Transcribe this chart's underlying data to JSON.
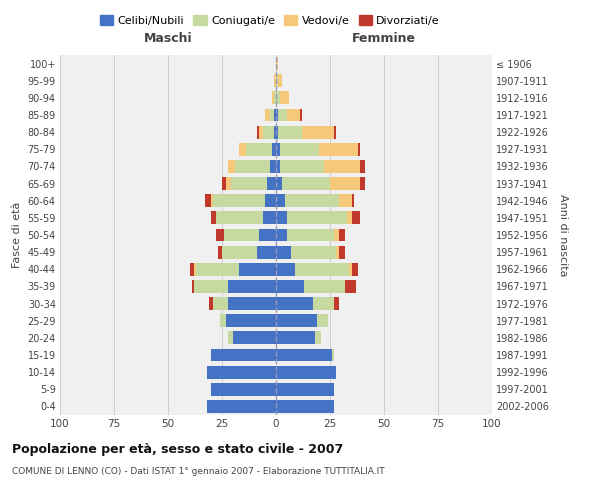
{
  "age_groups": [
    "0-4",
    "5-9",
    "10-14",
    "15-19",
    "20-24",
    "25-29",
    "30-34",
    "35-39",
    "40-44",
    "45-49",
    "50-54",
    "55-59",
    "60-64",
    "65-69",
    "70-74",
    "75-79",
    "80-84",
    "85-89",
    "90-94",
    "95-99",
    "100+"
  ],
  "birth_years": [
    "2002-2006",
    "1997-2001",
    "1992-1996",
    "1987-1991",
    "1982-1986",
    "1977-1981",
    "1972-1976",
    "1967-1971",
    "1962-1966",
    "1957-1961",
    "1952-1956",
    "1947-1951",
    "1942-1946",
    "1937-1941",
    "1932-1936",
    "1927-1931",
    "1922-1926",
    "1917-1921",
    "1912-1916",
    "1907-1911",
    "≤ 1906"
  ],
  "colors": {
    "celibi": "#4472c4",
    "coniugati": "#c5d9a0",
    "vedovi": "#f5c87a",
    "divorziati": "#c0392b"
  },
  "maschi": {
    "celibi": [
      32,
      30,
      32,
      30,
      20,
      23,
      22,
      22,
      17,
      9,
      8,
      6,
      5,
      4,
      3,
      2,
      1,
      1,
      0,
      0,
      0
    ],
    "coniugati": [
      0,
      0,
      0,
      0,
      2,
      3,
      7,
      16,
      20,
      16,
      16,
      22,
      24,
      17,
      16,
      12,
      5,
      2,
      1,
      0,
      0
    ],
    "vedovi": [
      0,
      0,
      0,
      0,
      0,
      0,
      0,
      0,
      1,
      0,
      0,
      0,
      1,
      2,
      3,
      3,
      2,
      2,
      1,
      1,
      0
    ],
    "divorziati": [
      0,
      0,
      0,
      0,
      0,
      0,
      2,
      1,
      2,
      2,
      4,
      2,
      3,
      2,
      0,
      0,
      1,
      0,
      0,
      0,
      0
    ]
  },
  "femmine": {
    "celibi": [
      27,
      27,
      28,
      26,
      18,
      19,
      17,
      13,
      9,
      7,
      5,
      5,
      4,
      3,
      2,
      2,
      1,
      1,
      0,
      0,
      0
    ],
    "coniugati": [
      0,
      0,
      0,
      1,
      3,
      5,
      10,
      19,
      25,
      21,
      22,
      28,
      25,
      22,
      20,
      18,
      11,
      4,
      2,
      1,
      0
    ],
    "vedovi": [
      0,
      0,
      0,
      0,
      0,
      0,
      0,
      0,
      1,
      1,
      2,
      2,
      6,
      14,
      17,
      18,
      15,
      6,
      4,
      2,
      1
    ],
    "divorziati": [
      0,
      0,
      0,
      0,
      0,
      0,
      2,
      5,
      3,
      3,
      3,
      4,
      1,
      2,
      2,
      1,
      1,
      1,
      0,
      0,
      0
    ]
  },
  "xlim": 100,
  "title": "Popolazione per età, sesso e stato civile - 2007",
  "subtitle": "COMUNE DI LENNO (CO) - Dati ISTAT 1° gennaio 2007 - Elaborazione TUTTITALIA.IT",
  "xlabel_left": "Maschi",
  "xlabel_right": "Femmine",
  "ylabel_left": "Fasce di età",
  "ylabel_right": "Anni di nascita",
  "legend_labels": [
    "Celibi/Nubili",
    "Coniugati/e",
    "Vedovi/e",
    "Divorziati/e"
  ],
  "background_color": "#f0f0f0",
  "grid_color": "#cccccc"
}
